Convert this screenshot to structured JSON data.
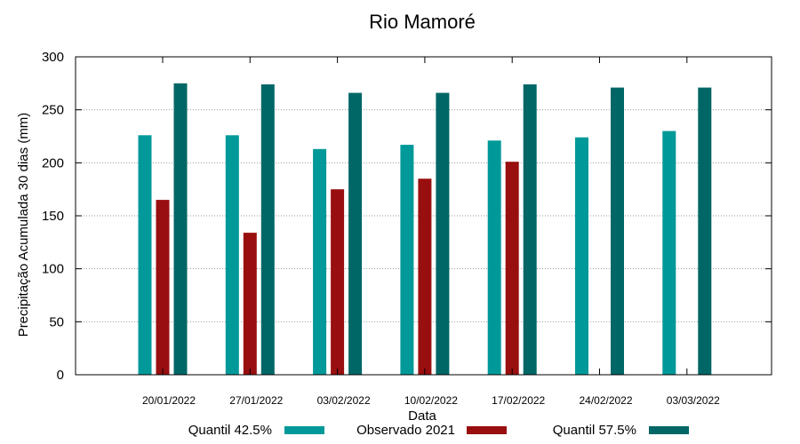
{
  "chart_data": {
    "type": "bar",
    "title": "Rio Mamoré",
    "xlabel": "Data",
    "ylabel": "Precipitação Acumulada 30 dias (mm)",
    "ylim": [
      0,
      300
    ],
    "yticks": [
      0,
      50,
      100,
      150,
      200,
      250,
      300
    ],
    "grid": true,
    "legend_position": "bottom",
    "categories": [
      "20/01/2022",
      "27/01/2022",
      "03/02/2022",
      "10/02/2022",
      "17/02/2022",
      "24/02/2022",
      "03/03/2022"
    ],
    "series": [
      {
        "name": "Quantil 42.5%",
        "color": "#009999",
        "values": [
          226,
          226,
          213,
          217,
          221,
          224,
          230
        ]
      },
      {
        "name": "Observado 2021",
        "color": "#990f0f",
        "values": [
          165,
          134,
          175,
          185,
          201,
          null,
          null
        ]
      },
      {
        "name": "Quantil 57.5%",
        "color": "#006666",
        "values": [
          275,
          274,
          266,
          266,
          274,
          271,
          271
        ]
      }
    ]
  }
}
